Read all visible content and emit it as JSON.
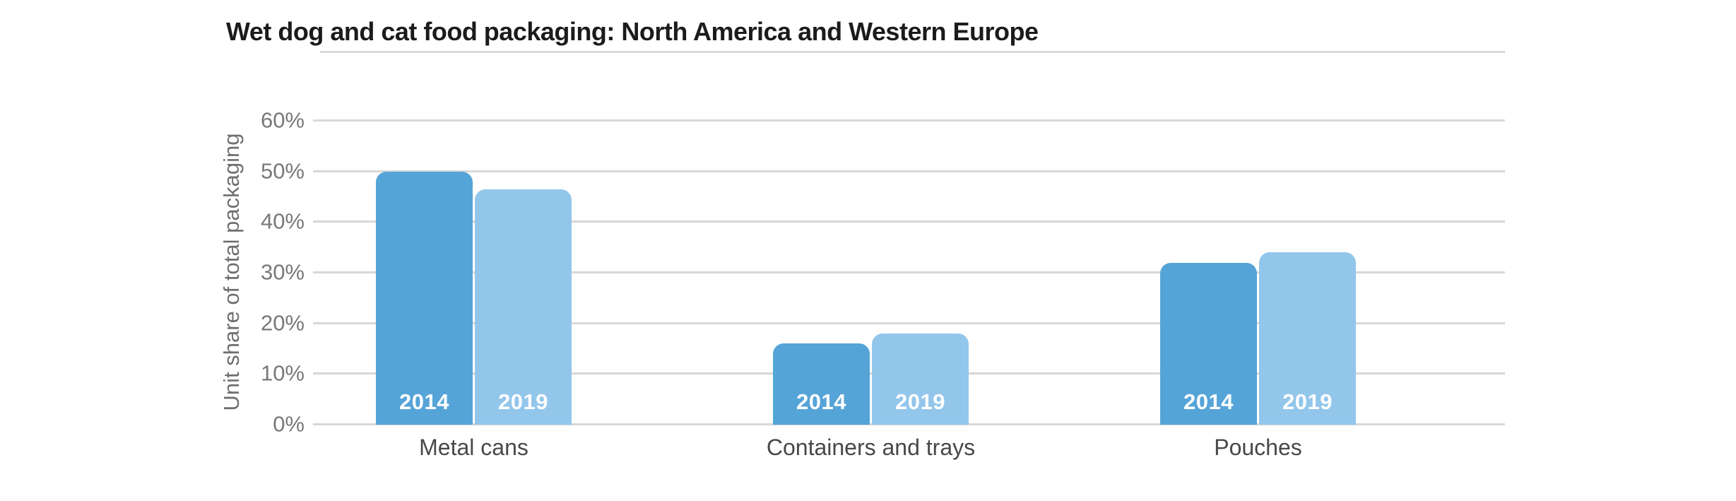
{
  "title": "Wet dog and cat food packaging: North America and Western Europe",
  "colors": {
    "title": "#1b1b1d",
    "gridline": "#d8d8d8",
    "tick_label": "#77787a",
    "axis_title": "#6e6f72",
    "category_label": "#48484b",
    "bar_label": "#ffffff",
    "bar_2014": "#55a4d8",
    "bar_2019": "#93c6eb",
    "background": "#ffffff"
  },
  "chart_data": {
    "type": "bar",
    "title": "Wet dog and cat food packaging: North America and Western Europe",
    "xlabel": "",
    "ylabel": "Unit share of total packaging",
    "ylim": [
      0,
      60
    ],
    "yticks": [
      0,
      10,
      20,
      30,
      40,
      50,
      60
    ],
    "ytick_labels": [
      "0%",
      "10%",
      "20%",
      "30%",
      "40%",
      "50%",
      "60%"
    ],
    "grid": true,
    "legend_position": "none (series year labels shown in white inside each bar base)",
    "categories": [
      "Metal cans",
      "Containers and trays",
      "Pouches"
    ],
    "series": [
      {
        "name": "2014",
        "color": "#55a4d8",
        "values": [
          50,
          16,
          32
        ]
      },
      {
        "name": "2019",
        "color": "#93c6eb",
        "values": [
          46.5,
          18,
          34
        ]
      }
    ]
  }
}
